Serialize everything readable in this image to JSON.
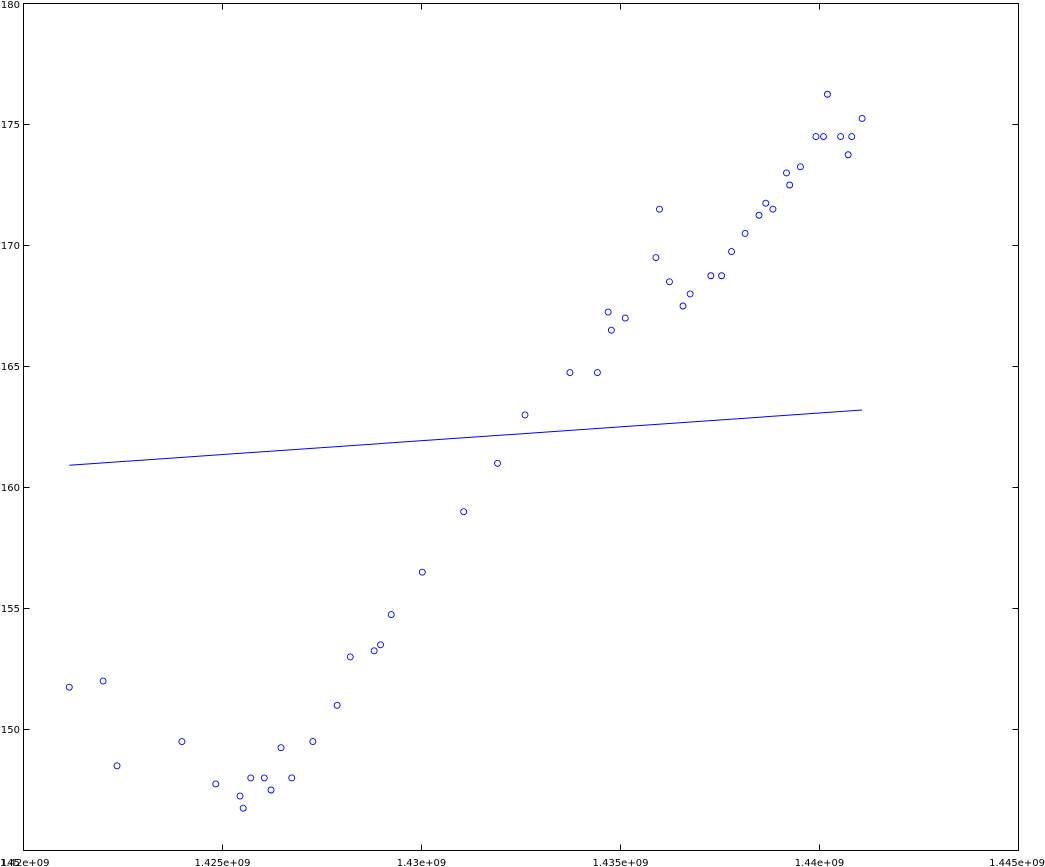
{
  "chart_data": {
    "type": "scatter",
    "title": "",
    "xlabel": "",
    "ylabel": "",
    "xlim": [
      1420000000,
      1445000000
    ],
    "ylim": [
      145,
      180
    ],
    "x_ticks": [
      1420000000,
      1425000000,
      1430000000,
      1435000000,
      1440000000,
      1445000000
    ],
    "x_tick_labels": [
      "1.42e+09",
      "1.425e+09",
      "1.43e+09",
      "1.435e+09",
      "1.44e+09",
      "1.445e+09"
    ],
    "y_ticks": [
      145,
      150,
      155,
      160,
      165,
      170,
      175,
      180
    ],
    "y_tick_labels": [
      "145",
      "150",
      "155",
      "160",
      "165",
      "170",
      "175",
      "180"
    ],
    "grid": false,
    "legend": "none",
    "marker_color": "#0000ff",
    "series": [
      {
        "kind": "points",
        "points": [
          [
            1421150000,
            151.75
          ],
          [
            1422000000,
            152.0
          ],
          [
            1422350000,
            148.5
          ],
          [
            1423980000,
            149.5
          ],
          [
            1424830000,
            147.75
          ],
          [
            1425440000,
            147.25
          ],
          [
            1425520000,
            146.75
          ],
          [
            1425710000,
            148.0
          ],
          [
            1426050000,
            148.0
          ],
          [
            1426220000,
            147.5
          ],
          [
            1426470000,
            149.25
          ],
          [
            1426740000,
            148.0
          ],
          [
            1427270000,
            149.5
          ],
          [
            1427880000,
            151.0
          ],
          [
            1428210000,
            153.0
          ],
          [
            1428810000,
            153.25
          ],
          [
            1428970000,
            153.5
          ],
          [
            1429240000,
            154.75
          ],
          [
            1430020000,
            156.5
          ],
          [
            1431060000,
            159.0
          ],
          [
            1431910000,
            161.0
          ],
          [
            1432600000,
            163.0
          ],
          [
            1433730000,
            164.75
          ],
          [
            1434420000,
            164.75
          ],
          [
            1434690000,
            167.25
          ],
          [
            1434770000,
            166.5
          ],
          [
            1435120000,
            167.0
          ],
          [
            1435890000,
            169.5
          ],
          [
            1435980000,
            171.5
          ],
          [
            1436230000,
            168.5
          ],
          [
            1436570000,
            167.5
          ],
          [
            1436750000,
            168.0
          ],
          [
            1437270000,
            168.75
          ],
          [
            1437540000,
            168.75
          ],
          [
            1437790000,
            169.75
          ],
          [
            1438130000,
            170.5
          ],
          [
            1438480000,
            171.25
          ],
          [
            1438650000,
            171.75
          ],
          [
            1438830000,
            171.5
          ],
          [
            1439170000,
            173.0
          ],
          [
            1439250000,
            172.5
          ],
          [
            1439520000,
            173.25
          ],
          [
            1439910000,
            174.5
          ],
          [
            1440100000,
            174.5
          ],
          [
            1440200000,
            176.25
          ],
          [
            1440530000,
            174.5
          ],
          [
            1440720000,
            173.75
          ],
          [
            1440810000,
            174.5
          ],
          [
            1441070000,
            175.25
          ]
        ]
      },
      {
        "kind": "line",
        "x": [
          1421150000,
          1441070000
        ],
        "y": [
          160.92,
          163.2
        ]
      }
    ]
  }
}
